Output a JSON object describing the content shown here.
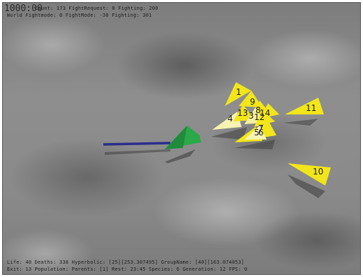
{
  "hud": {
    "clock": "1000:00",
    "top_line_1": "Count: 173 FightRequest: 0 Fighting: 200",
    "top_line_2": "World Fightmode: 0 FightMode: -30 Fighting: 301",
    "bottom_line_1": "Life: 40 Deaths: 338 Hyperbolic: [25][253.307495] GroupName: [40][163.074053]",
    "bottom_line_2": "Exit: 13 Population: Parents: [1] Rest: 23:45 Species: 6 Generation: 12 FPS: 0"
  },
  "agents": [
    {
      "id": "1",
      "label": "1"
    },
    {
      "id": "9",
      "label": "9"
    },
    {
      "id": "8",
      "label": "8"
    },
    {
      "id": "13",
      "label": "13"
    },
    {
      "id": "4",
      "label": "4"
    },
    {
      "id": "3",
      "label": "3"
    },
    {
      "id": "12",
      "label": "12"
    },
    {
      "id": "14",
      "label": "14"
    },
    {
      "id": "7",
      "label": "7"
    },
    {
      "id": "5",
      "label": "5"
    },
    {
      "id": "6",
      "label": "6"
    },
    {
      "id": "11",
      "label": "11"
    },
    {
      "id": "10",
      "label": "10"
    }
  ],
  "colors": {
    "agent_fill": "#f2e61a",
    "agent_light": "#f7f3b0",
    "player_fill": "#2aa84a",
    "trail": "#2c2c8c"
  }
}
